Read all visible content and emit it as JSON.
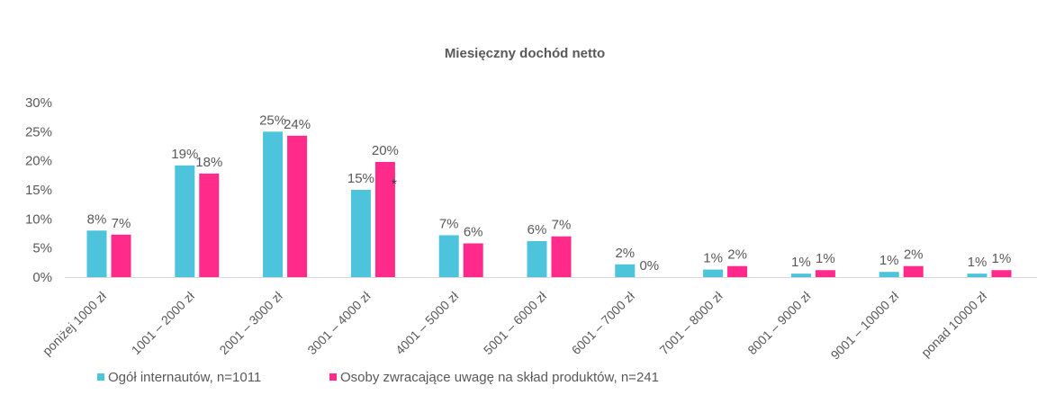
{
  "chart_data": {
    "type": "bar",
    "title": "Miesięczny dochód netto",
    "xlabel": "",
    "ylabel": "",
    "ylim": [
      0,
      30
    ],
    "yticks": [
      "0%",
      "5%",
      "10%",
      "15%",
      "20%",
      "25%",
      "30%"
    ],
    "grid": false,
    "legend_position": "bottom-left",
    "categories": [
      "poniżej 1000 zł",
      "1001 – 2000 zł",
      "2001 – 3000 zł",
      "3001 – 4000 zł",
      "4001 – 5000 zł",
      "5001 – 6000 zł",
      "6001 – 7000 zł",
      "7001 – 8000 zł",
      "8001 – 9000 zł",
      "9001 – 10000 zł",
      "ponad 10000 zł"
    ],
    "series": [
      {
        "name": "Ogół internautów, n=1011",
        "color": "#4dc3dc",
        "values": [
          8,
          19,
          25,
          15,
          7,
          6,
          2,
          1,
          1,
          1,
          1
        ],
        "labels": [
          "8%",
          "19%",
          "25%",
          "15%",
          "7%",
          "6%",
          "2%",
          "1%",
          "1%",
          "1%",
          "1%"
        ],
        "bar_values": [
          8,
          19.2,
          25,
          15,
          7.2,
          6.2,
          2.2,
          1.3,
          0.6,
          0.9,
          0.6
        ]
      },
      {
        "name": "Osoby zwracające uwagę na skład produktów, n=241",
        "color": "#ff2a8a",
        "values": [
          7,
          18,
          24,
          20,
          6,
          7,
          0,
          2,
          1,
          2,
          1
        ],
        "labels": [
          "7%",
          "18%",
          "24%",
          "20%",
          "6%",
          "7%",
          "0%",
          "2%",
          "1%",
          "2%",
          "1%"
        ],
        "bar_values": [
          7.3,
          17.8,
          24.3,
          19.8,
          5.8,
          7,
          0,
          1.9,
          1.2,
          1.9,
          1.2
        ]
      }
    ],
    "annotations": [
      {
        "text": "*",
        "category": "3001 – 4000 zł",
        "series": 1
      }
    ]
  }
}
